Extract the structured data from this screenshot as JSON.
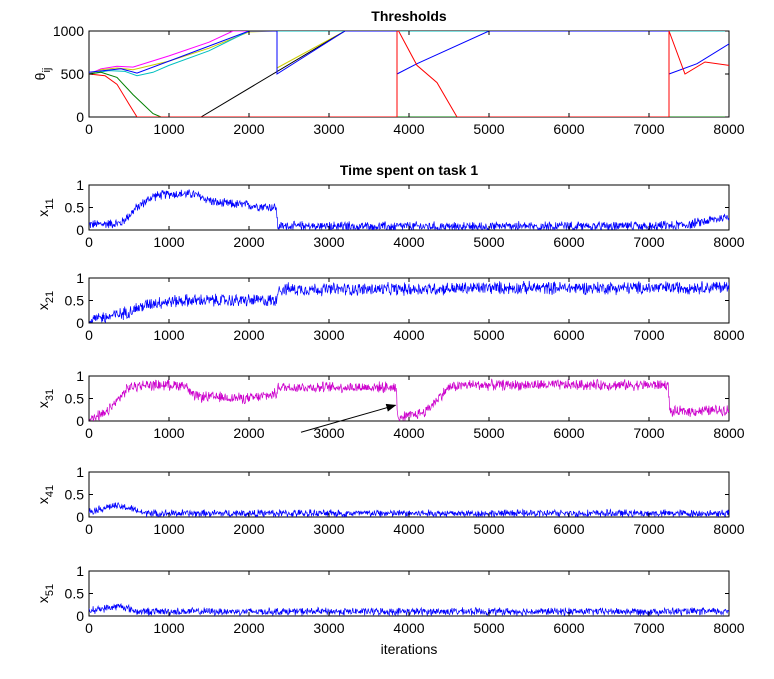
{
  "chart_data": [
    {
      "id": "thresholds",
      "type": "line",
      "title": "Thresholds",
      "ylabel": "θij",
      "xlim": [
        0,
        8000
      ],
      "ylim": [
        0,
        1000
      ],
      "xticks": [
        "0",
        "1000",
        "2000",
        "3000",
        "4000",
        "5000",
        "6000",
        "7000",
        "8000"
      ],
      "yticks": [
        "0",
        "500",
        "1000"
      ],
      "series": [
        {
          "color": "#ff00ff",
          "x": [
            0,
            150,
            350,
            550,
            1000,
            1500,
            1800,
            8000
          ],
          "y": [
            500,
            560,
            590,
            580,
            710,
            870,
            1000,
            1000
          ]
        },
        {
          "color": "#cccc00",
          "x": [
            0,
            150,
            350,
            550,
            1000,
            1500,
            2000,
            2350,
            2350,
            3200,
            8000
          ],
          "y": [
            500,
            550,
            570,
            550,
            650,
            800,
            990,
            1000,
            570,
            1000,
            1000
          ]
        },
        {
          "color": "#000000",
          "x": [
            0,
            1400,
            3200,
            8000
          ],
          "y": [
            0,
            0,
            1000,
            1000
          ]
        },
        {
          "color": "#00bfbf",
          "x": [
            0,
            250,
            450,
            600,
            800,
            1000,
            1500,
            2000,
            8000
          ],
          "y": [
            500,
            540,
            530,
            480,
            520,
            600,
            770,
            1000,
            1000
          ]
        },
        {
          "color": "#0000ff",
          "x": [
            0,
            400,
            600,
            1200,
            2000,
            2350,
            2350,
            3200,
            3850,
            3850,
            4100,
            5000,
            7250,
            7250,
            7600,
            8000
          ],
          "y": [
            520,
            560,
            510,
            720,
            1000,
            1000,
            500,
            1000,
            1000,
            500,
            620,
            1000,
            1000,
            500,
            620,
            850
          ]
        },
        {
          "color": "#008000",
          "x": [
            0,
            150,
            350,
            550,
            800,
            900,
            8000
          ],
          "y": [
            500,
            520,
            460,
            260,
            40,
            0,
            0
          ]
        },
        {
          "color": "#ff0000",
          "x": [
            0,
            200,
            350,
            500,
            600,
            3850,
            3850,
            3870,
            4100,
            4350,
            4600,
            7250,
            7250,
            7450,
            7700,
            8000
          ],
          "y": [
            500,
            480,
            380,
            150,
            0,
            0,
            1000,
            1000,
            600,
            400,
            0,
            0,
            1000,
            500,
            640,
            600
          ]
        }
      ]
    },
    {
      "id": "x11",
      "type": "line",
      "title": "Time spent on task 1",
      "ylabel": "x11",
      "xlim": [
        0,
        8000
      ],
      "ylim": [
        0,
        1
      ],
      "xticks": [
        "0",
        "1000",
        "2000",
        "3000",
        "4000",
        "5000",
        "6000",
        "7000",
        "8000"
      ],
      "yticks": [
        "0",
        "0.5",
        "1"
      ],
      "series": [
        {
          "color": "#0000ff",
          "x": [
            0,
            400,
            600,
            800,
            1000,
            1300,
            1600,
            2000,
            2340,
            2360,
            3000,
            4000,
            5000,
            6000,
            7000,
            7500,
            8000
          ],
          "y": [
            0.12,
            0.15,
            0.5,
            0.75,
            0.8,
            0.8,
            0.6,
            0.55,
            0.5,
            0.08,
            0.08,
            0.08,
            0.08,
            0.08,
            0.08,
            0.12,
            0.3
          ],
          "noise": 0.09
        }
      ]
    },
    {
      "id": "x21",
      "type": "line",
      "title": "",
      "ylabel": "x21",
      "xlim": [
        0,
        8000
      ],
      "ylim": [
        0,
        1
      ],
      "xticks": [
        "0",
        "1000",
        "2000",
        "3000",
        "4000",
        "5000",
        "6000",
        "7000",
        "8000"
      ],
      "yticks": [
        "0",
        "0.5",
        "1"
      ],
      "series": [
        {
          "color": "#0000ff",
          "x": [
            0,
            400,
            800,
            1200,
            2340,
            2360,
            3000,
            4000,
            5000,
            6000,
            7000,
            8000
          ],
          "y": [
            0.05,
            0.2,
            0.45,
            0.5,
            0.5,
            0.75,
            0.75,
            0.75,
            0.78,
            0.78,
            0.78,
            0.8
          ],
          "noise": 0.12
        }
      ]
    },
    {
      "id": "x31",
      "type": "line",
      "title": "",
      "ylabel": "x31",
      "xlim": [
        0,
        8000
      ],
      "ylim": [
        0,
        1
      ],
      "xticks": [
        "0",
        "1000",
        "2000",
        "3000",
        "4000",
        "5000",
        "6000",
        "7000",
        "8000"
      ],
      "yticks": [
        "0",
        "0.5",
        "1"
      ],
      "series": [
        {
          "color": "#cc00cc",
          "x": [
            0,
            200,
            500,
            700,
            1200,
            1300,
            2000,
            2340,
            2360,
            3000,
            3840,
            3860,
            4200,
            4500,
            4700,
            5000,
            6000,
            7240,
            7260,
            8000
          ],
          "y": [
            0.05,
            0.15,
            0.75,
            0.8,
            0.8,
            0.55,
            0.5,
            0.6,
            0.75,
            0.75,
            0.75,
            0.05,
            0.2,
            0.75,
            0.8,
            0.8,
            0.8,
            0.8,
            0.2,
            0.25
          ],
          "noise": 0.1
        }
      ],
      "annotation": {
        "type": "arrow",
        "from": [
          2650,
          -0.25
        ],
        "to": [
          3830,
          0.35
        ]
      }
    },
    {
      "id": "x41",
      "type": "line",
      "title": "",
      "ylabel": "x41",
      "xlim": [
        0,
        8000
      ],
      "ylim": [
        0,
        1
      ],
      "xticks": [
        "0",
        "1000",
        "2000",
        "3000",
        "4000",
        "5000",
        "6000",
        "7000",
        "8000"
      ],
      "yticks": [
        "0",
        "0.5",
        "1"
      ],
      "series": [
        {
          "color": "#0000ff",
          "x": [
            0,
            300,
            500,
            700,
            8000
          ],
          "y": [
            0.12,
            0.25,
            0.2,
            0.08,
            0.08
          ],
          "noise": 0.07
        }
      ]
    },
    {
      "id": "x51",
      "type": "line",
      "title": "",
      "ylabel": "x51",
      "xlabel": "iterations",
      "xlim": [
        0,
        8000
      ],
      "ylim": [
        0,
        1
      ],
      "xticks": [
        "0",
        "1000",
        "2000",
        "3000",
        "4000",
        "5000",
        "6000",
        "7000",
        "8000"
      ],
      "yticks": [
        "0",
        "0.5",
        "1"
      ],
      "series": [
        {
          "color": "#0000ff",
          "x": [
            0,
            400,
            600,
            8000
          ],
          "y": [
            0.12,
            0.22,
            0.1,
            0.1
          ],
          "noise": 0.07
        }
      ]
    }
  ]
}
